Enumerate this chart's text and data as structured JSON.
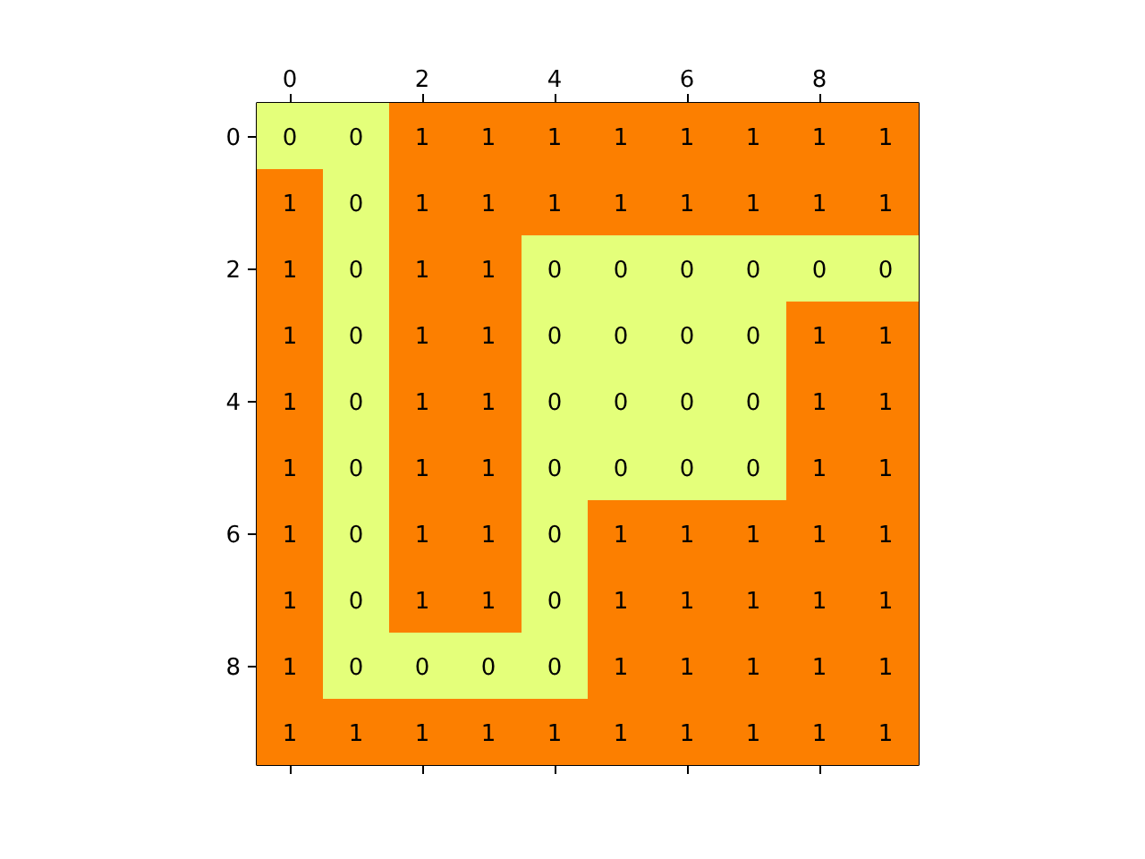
{
  "chart_data": {
    "type": "heatmap",
    "categories": [
      "0",
      null,
      "2",
      null,
      "4",
      null,
      "6",
      null,
      "8",
      null
    ],
    "y_categories": [
      "0",
      null,
      "2",
      null,
      "4",
      null,
      "6",
      null,
      "8",
      null
    ],
    "cells": [
      [
        0,
        0,
        1,
        1,
        1,
        1,
        1,
        1,
        1,
        1
      ],
      [
        1,
        0,
        1,
        1,
        1,
        1,
        1,
        1,
        1,
        1
      ],
      [
        1,
        0,
        1,
        1,
        0,
        0,
        0,
        0,
        0,
        0
      ],
      [
        1,
        0,
        1,
        1,
        0,
        0,
        0,
        0,
        1,
        1
      ],
      [
        1,
        0,
        1,
        1,
        0,
        0,
        0,
        0,
        1,
        1
      ],
      [
        1,
        0,
        1,
        1,
        0,
        0,
        0,
        0,
        1,
        1
      ],
      [
        1,
        0,
        1,
        1,
        0,
        1,
        1,
        1,
        1,
        1
      ],
      [
        1,
        0,
        1,
        1,
        0,
        1,
        1,
        1,
        1,
        1
      ],
      [
        1,
        0,
        0,
        0,
        0,
        1,
        1,
        1,
        1,
        1
      ],
      [
        1,
        1,
        1,
        1,
        1,
        1,
        1,
        1,
        1,
        1
      ]
    ],
    "colors": [
      "#e4ff7a",
      "#fc7f00"
    ],
    "data_labels": true
  }
}
